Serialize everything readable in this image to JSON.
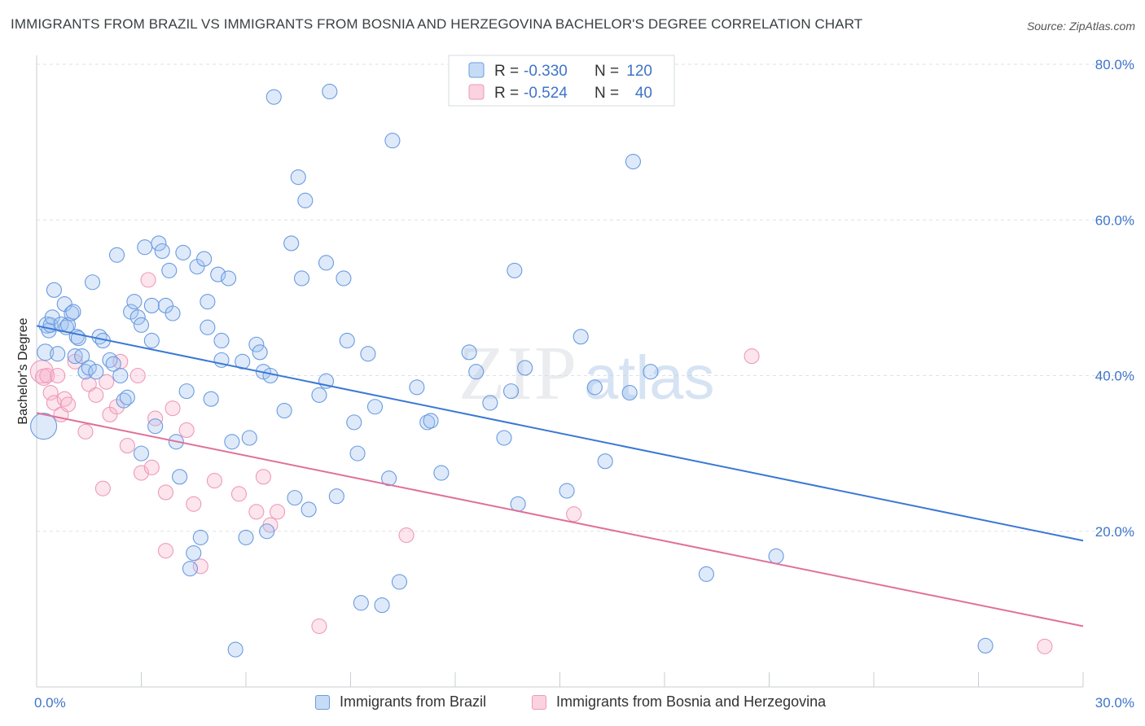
{
  "title": "IMMIGRANTS FROM BRAZIL VS IMMIGRANTS FROM BOSNIA AND HERZEGOVINA BACHELOR'S DEGREE CORRELATION CHART",
  "source": "Source: ZipAtlas.com",
  "watermark": {
    "zip": "ZIP",
    "atlas": "atlas"
  },
  "colors": {
    "blue": "#3a78d4",
    "blue_fill": "rgba(160,196,240,0.35)",
    "blue_stroke": "#6a9be0",
    "pink": "#e0709a",
    "pink_fill": "rgba(246,180,204,0.35)",
    "pink_stroke": "#ef9ab9",
    "tick_text": "#3e74c8",
    "grid": "#dde1e6"
  },
  "legend": {
    "r_label": "R =",
    "n_label": "N =",
    "rows": [
      {
        "r": "-0.330",
        "n": "120",
        "color": "blue"
      },
      {
        "r": "-0.524",
        "n": "40",
        "color": "pink"
      }
    ]
  },
  "chart_data": {
    "type": "scatter",
    "title": "IMMIGRANTS FROM BRAZIL VS IMMIGRANTS FROM BOSNIA AND HERZEGOVINA BACHELOR'S DEGREE CORRELATION CHART",
    "xlabel": "",
    "ylabel": "Bachelor's Degree",
    "xlim": [
      0,
      30
    ],
    "ylim": [
      0,
      80
    ],
    "x_tick_labels": [
      {
        "value": 0,
        "label": "0.0%"
      },
      {
        "value": 30,
        "label": "30.0%"
      }
    ],
    "x_minor_ticks": [
      3,
      6,
      9,
      12,
      15,
      18,
      21,
      24,
      27
    ],
    "y_ticks": [
      {
        "value": 20,
        "label": "20.0%"
      },
      {
        "value": 40,
        "label": "40.0%"
      },
      {
        "value": 60,
        "label": "60.0%"
      },
      {
        "value": 80,
        "label": "80.0%"
      }
    ],
    "grid": true,
    "legend_placement": "top-center",
    "series": [
      {
        "name": "Immigrants from Brazil",
        "color": "blue",
        "trend": {
          "x": [
            0,
            30
          ],
          "y": [
            46.4,
            18.8
          ]
        },
        "points": [
          [
            0.2,
            33.5,
            16
          ],
          [
            0.25,
            43.0,
            10
          ],
          [
            0.3,
            46.5,
            10
          ],
          [
            0.35,
            45.8,
            9
          ],
          [
            0.4,
            46.5,
            9
          ],
          [
            0.45,
            47.5,
            9
          ],
          [
            0.5,
            51.0,
            9
          ],
          [
            0.6,
            42.8,
            9
          ],
          [
            0.7,
            46.6,
            9
          ],
          [
            0.8,
            49.2,
            9
          ],
          [
            0.85,
            46.2,
            9
          ],
          [
            0.9,
            46.5,
            9
          ],
          [
            1.0,
            48.0,
            9
          ],
          [
            1.05,
            48.2,
            9
          ],
          [
            1.1,
            42.5,
            9
          ],
          [
            1.15,
            45.0,
            9
          ],
          [
            1.2,
            44.8,
            9
          ],
          [
            1.3,
            42.5,
            9
          ],
          [
            1.4,
            40.5,
            9
          ],
          [
            1.5,
            41.0,
            9
          ],
          [
            1.6,
            52.0,
            9
          ],
          [
            1.7,
            40.5,
            9
          ],
          [
            1.8,
            45.0,
            9
          ],
          [
            1.9,
            44.5,
            9
          ],
          [
            2.1,
            42.0,
            9
          ],
          [
            2.2,
            41.5,
            9
          ],
          [
            2.3,
            55.5,
            9
          ],
          [
            2.4,
            40.0,
            9
          ],
          [
            2.5,
            36.8,
            9
          ],
          [
            2.6,
            37.2,
            9
          ],
          [
            2.7,
            48.2,
            9
          ],
          [
            2.8,
            49.5,
            9
          ],
          [
            2.9,
            47.5,
            9
          ],
          [
            3.0,
            46.5,
            9
          ],
          [
            3.0,
            30.0,
            9
          ],
          [
            3.1,
            56.5,
            9
          ],
          [
            3.3,
            49.0,
            9
          ],
          [
            3.3,
            44.5,
            9
          ],
          [
            3.4,
            33.5,
            9
          ],
          [
            3.5,
            57.0,
            9
          ],
          [
            3.6,
            56.0,
            9
          ],
          [
            3.7,
            49.0,
            9
          ],
          [
            3.8,
            53.5,
            9
          ],
          [
            3.9,
            48.0,
            9
          ],
          [
            4.0,
            31.5,
            9
          ],
          [
            4.1,
            27.0,
            9
          ],
          [
            4.2,
            55.8,
            9
          ],
          [
            4.3,
            38.0,
            9
          ],
          [
            4.4,
            15.2,
            9
          ],
          [
            4.5,
            17.2,
            9
          ],
          [
            4.6,
            54.0,
            9
          ],
          [
            4.7,
            19.2,
            9
          ],
          [
            4.8,
            55.0,
            9
          ],
          [
            4.9,
            49.5,
            9
          ],
          [
            4.9,
            46.2,
            9
          ],
          [
            5.0,
            37.0,
            9
          ],
          [
            5.2,
            53.0,
            9
          ],
          [
            5.3,
            44.5,
            9
          ],
          [
            5.3,
            42.0,
            9
          ],
          [
            5.5,
            52.5,
            9
          ],
          [
            5.6,
            31.5,
            9
          ],
          [
            5.7,
            4.8,
            9
          ],
          [
            5.9,
            41.8,
            9
          ],
          [
            6.0,
            19.2,
            9
          ],
          [
            6.1,
            32.0,
            9
          ],
          [
            6.3,
            44.0,
            9
          ],
          [
            6.4,
            43.0,
            9
          ],
          [
            6.5,
            40.5,
            9
          ],
          [
            6.6,
            20.0,
            9
          ],
          [
            6.7,
            40.0,
            9
          ],
          [
            6.8,
            75.8,
            9
          ],
          [
            7.1,
            35.5,
            9
          ],
          [
            7.3,
            57.0,
            9
          ],
          [
            7.4,
            24.3,
            9
          ],
          [
            7.5,
            65.5,
            9
          ],
          [
            7.6,
            52.5,
            9
          ],
          [
            7.7,
            62.5,
            9
          ],
          [
            7.8,
            22.8,
            9
          ],
          [
            8.1,
            37.5,
            9
          ],
          [
            8.3,
            54.5,
            9
          ],
          [
            8.3,
            39.3,
            9
          ],
          [
            8.4,
            76.5,
            9
          ],
          [
            8.6,
            24.5,
            9
          ],
          [
            8.8,
            52.5,
            9
          ],
          [
            8.9,
            44.5,
            9
          ],
          [
            9.1,
            34.0,
            9
          ],
          [
            9.2,
            30.0,
            9
          ],
          [
            9.3,
            10.8,
            9
          ],
          [
            9.5,
            42.8,
            9
          ],
          [
            9.7,
            36.0,
            9
          ],
          [
            9.9,
            10.5,
            9
          ],
          [
            10.1,
            26.8,
            9
          ],
          [
            10.2,
            70.2,
            9
          ],
          [
            10.4,
            13.5,
            9
          ],
          [
            10.9,
            38.5,
            9
          ],
          [
            11.2,
            34.0,
            9
          ],
          [
            11.3,
            34.2,
            9
          ],
          [
            11.6,
            27.5,
            9
          ],
          [
            12.4,
            43.0,
            9
          ],
          [
            12.6,
            40.5,
            9
          ],
          [
            13.0,
            36.5,
            9
          ],
          [
            13.4,
            32.0,
            9
          ],
          [
            13.6,
            38.0,
            9
          ],
          [
            13.7,
            53.5,
            9
          ],
          [
            13.8,
            23.5,
            9
          ],
          [
            14.0,
            41.0,
            9
          ],
          [
            15.2,
            25.2,
            9
          ],
          [
            15.6,
            45.0,
            9
          ],
          [
            16.0,
            38.5,
            9
          ],
          [
            16.3,
            29.0,
            9
          ],
          [
            17.0,
            37.8,
            9
          ],
          [
            17.1,
            67.5,
            9
          ],
          [
            17.6,
            40.5,
            9
          ],
          [
            19.2,
            14.5,
            9
          ],
          [
            21.2,
            16.8,
            9
          ],
          [
            27.2,
            5.3,
            9
          ]
        ]
      },
      {
        "name": "Immigrants from Bosnia and Herzegovina",
        "color": "pink",
        "trend": {
          "x": [
            0,
            30
          ],
          "y": [
            35.2,
            7.8
          ]
        },
        "points": [
          [
            0.15,
            40.5,
            14
          ],
          [
            0.2,
            39.8,
            10
          ],
          [
            0.3,
            40.0,
            9
          ],
          [
            0.4,
            37.8,
            9
          ],
          [
            0.5,
            36.5,
            9
          ],
          [
            0.6,
            40.0,
            9
          ],
          [
            0.7,
            35.0,
            9
          ],
          [
            0.8,
            37.0,
            9
          ],
          [
            0.9,
            36.3,
            9
          ],
          [
            1.1,
            41.8,
            9
          ],
          [
            1.4,
            32.8,
            9
          ],
          [
            1.5,
            38.9,
            9
          ],
          [
            1.7,
            37.5,
            9
          ],
          [
            1.9,
            25.5,
            9
          ],
          [
            2.0,
            39.2,
            9
          ],
          [
            2.1,
            35.0,
            9
          ],
          [
            2.3,
            36.0,
            9
          ],
          [
            2.4,
            41.8,
            9
          ],
          [
            2.6,
            31.0,
            9
          ],
          [
            2.9,
            40.0,
            9
          ],
          [
            3.0,
            27.5,
            9
          ],
          [
            3.2,
            52.3,
            9
          ],
          [
            3.3,
            28.2,
            9
          ],
          [
            3.4,
            34.5,
            9
          ],
          [
            3.7,
            17.5,
            9
          ],
          [
            3.7,
            25.0,
            9
          ],
          [
            3.9,
            35.8,
            9
          ],
          [
            4.3,
            33.0,
            9
          ],
          [
            4.5,
            23.5,
            9
          ],
          [
            4.7,
            15.5,
            9
          ],
          [
            5.1,
            26.5,
            9
          ],
          [
            5.8,
            24.8,
            9
          ],
          [
            6.3,
            22.5,
            9
          ],
          [
            6.5,
            27.0,
            9
          ],
          [
            6.7,
            20.8,
            9
          ],
          [
            6.9,
            22.5,
            9
          ],
          [
            8.1,
            7.8,
            9
          ],
          [
            10.6,
            19.5,
            9
          ],
          [
            15.4,
            22.2,
            9
          ],
          [
            20.5,
            42.5,
            9
          ],
          [
            28.9,
            5.2,
            9
          ]
        ]
      }
    ]
  }
}
